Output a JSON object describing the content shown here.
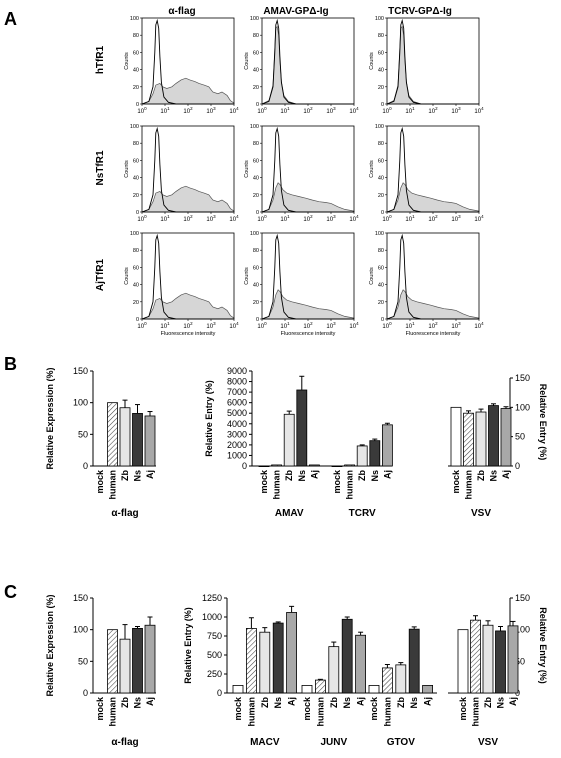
{
  "panels": {
    "a": {
      "letter": "A",
      "columns": [
        "α-flag",
        "AMAV-GPΔ-Ig",
        "TCRV-GPΔ-Ig"
      ],
      "rows": [
        "hTfR1",
        "NsTfR1",
        "AjTfR1"
      ],
      "ylabel": "Counts",
      "xlabel": "Fluorescence intensity",
      "yticks": [
        "0",
        "20",
        "40",
        "60",
        "80",
        "100"
      ],
      "xticks": [
        {
          "base": "10",
          "exp": "0"
        },
        {
          "base": "10",
          "exp": "1"
        },
        {
          "base": "10",
          "exp": "2"
        },
        {
          "base": "10",
          "exp": "3"
        },
        {
          "base": "10",
          "exp": "4"
        }
      ]
    },
    "b": {
      "letter": "B"
    },
    "c": {
      "letter": "C"
    }
  },
  "chart_data": [
    {
      "id": "A-histograms",
      "type": "area",
      "title": "",
      "xscale": "log",
      "xlim": [
        1,
        10000
      ],
      "ylim": [
        0,
        100
      ],
      "xlabel": "Fluorescence intensity",
      "ylabel": "Counts",
      "columns": [
        "α-flag",
        "AMAV-GPΔ-Ig",
        "TCRV-GPΔ-Ig"
      ],
      "rows": [
        "hTfR1",
        "NsTfR1",
        "AjTfR1"
      ],
      "series_note_open": "control (unfilled outline)",
      "curves": {
        "control": [
          [
            1,
            0
          ],
          [
            2,
            3
          ],
          [
            3,
            20
          ],
          [
            3.6,
            60
          ],
          [
            4,
            92
          ],
          [
            4.6,
            97
          ],
          [
            5.3,
            88
          ],
          [
            6,
            55
          ],
          [
            7,
            25
          ],
          [
            9,
            8
          ],
          [
            14,
            2
          ],
          [
            30,
            0
          ],
          [
            10000,
            0
          ]
        ],
        "flag": [
          [
            1,
            0
          ],
          [
            2,
            3
          ],
          [
            3,
            12
          ],
          [
            4,
            22
          ],
          [
            6,
            24
          ],
          [
            8,
            20
          ],
          [
            12,
            18
          ],
          [
            20,
            20
          ],
          [
            30,
            24
          ],
          [
            50,
            28
          ],
          [
            80,
            30
          ],
          [
            120,
            28
          ],
          [
            200,
            26
          ],
          [
            300,
            24
          ],
          [
            500,
            22
          ],
          [
            800,
            20
          ],
          [
            1200,
            14
          ],
          [
            2000,
            12
          ],
          [
            3000,
            14
          ],
          [
            5000,
            10
          ],
          [
            7000,
            4
          ],
          [
            10000,
            1
          ]
        ],
        "binding_h": [
          [
            1,
            0
          ],
          [
            2,
            4
          ],
          [
            3,
            22
          ],
          [
            3.6,
            65
          ],
          [
            4,
            88
          ],
          [
            4.6,
            90
          ],
          [
            5.3,
            80
          ],
          [
            6,
            50
          ],
          [
            7,
            26
          ],
          [
            9,
            10
          ],
          [
            14,
            3
          ],
          [
            30,
            0
          ],
          [
            10000,
            0
          ]
        ],
        "binding_tail": [
          [
            1,
            0
          ],
          [
            2,
            3
          ],
          [
            3,
            14
          ],
          [
            4,
            28
          ],
          [
            5,
            34
          ],
          [
            6,
            32
          ],
          [
            8,
            26
          ],
          [
            12,
            22
          ],
          [
            20,
            20
          ],
          [
            40,
            18
          ],
          [
            80,
            16
          ],
          [
            150,
            14
          ],
          [
            300,
            12
          ],
          [
            600,
            11
          ],
          [
            1000,
            10
          ],
          [
            2000,
            6
          ],
          [
            4000,
            3
          ],
          [
            10000,
            1
          ]
        ]
      },
      "panel_curves": [
        [
          "flag",
          "binding_h",
          "binding_h"
        ],
        [
          "flag",
          "binding_tail",
          "binding_tail"
        ],
        [
          "flag",
          "binding_tail",
          "binding_tail"
        ]
      ]
    },
    {
      "id": "B-expression",
      "type": "bar",
      "ylabel": "Relative Expression (%)",
      "ylim": [
        0,
        150
      ],
      "yticks": [
        0,
        50,
        100,
        150
      ],
      "groups": [
        {
          "label": "α-flag",
          "categories": [
            "mock",
            "human",
            "Zb",
            "Ns",
            "Aj"
          ]
        }
      ],
      "values": [
        null,
        100,
        92,
        83,
        79
      ],
      "errors": [
        0,
        0,
        12,
        14,
        7
      ]
    },
    {
      "id": "B-entry",
      "type": "bar",
      "ylabel": "Relative Entry (%)",
      "ylim": [
        0,
        9000
      ],
      "yticks": [
        0,
        1000,
        2000,
        3000,
        4000,
        5000,
        6000,
        7000,
        8000,
        9000
      ],
      "groups": [
        {
          "label": "AMAV",
          "categories": [
            "mock",
            "human",
            "Zb",
            "Ns",
            "Aj"
          ]
        },
        {
          "label": "TCRV",
          "categories": [
            "mock",
            "human",
            "Zb",
            "Ns",
            "Aj"
          ]
        }
      ],
      "values": [
        [
          0,
          100,
          4900,
          7200,
          100
        ],
        [
          0,
          100,
          1900,
          2400,
          3900
        ]
      ],
      "errors": [
        [
          0,
          0,
          300,
          1300,
          0
        ],
        [
          0,
          0,
          100,
          150,
          150
        ]
      ]
    },
    {
      "id": "B-vsv",
      "type": "bar",
      "ylabel": "Relative Entry (%)",
      "ylim": [
        0,
        150
      ],
      "yticks": [
        0,
        50,
        100,
        150
      ],
      "groups": [
        {
          "label": "VSV",
          "categories": [
            "mock",
            "human",
            "Zb",
            "Ns",
            "Aj"
          ]
        }
      ],
      "values": [
        100,
        90,
        92,
        103,
        98
      ],
      "errors": [
        0,
        4,
        5,
        3,
        3
      ]
    },
    {
      "id": "C-expression",
      "type": "bar",
      "ylabel": "Relative Expression (%)",
      "ylim": [
        0,
        150
      ],
      "yticks": [
        0,
        50,
        100,
        150
      ],
      "groups": [
        {
          "label": "α-flag",
          "categories": [
            "mock",
            "human",
            "Zb",
            "Ns",
            "Aj"
          ]
        }
      ],
      "values": [
        null,
        100,
        85,
        102,
        107
      ],
      "errors": [
        0,
        0,
        23,
        3,
        13
      ]
    },
    {
      "id": "C-entry",
      "type": "bar",
      "ylabel": "Relative Entry (%)",
      "ylim": [
        0,
        1250
      ],
      "yticks": [
        0,
        250,
        500,
        750,
        1000,
        1250
      ],
      "groups": [
        {
          "label": "MACV",
          "categories": [
            "mock",
            "human",
            "Zb",
            "Ns",
            "Aj"
          ]
        },
        {
          "label": "JUNV",
          "categories": [
            "mock",
            "human",
            "Zb",
            "Ns",
            "Aj"
          ]
        },
        {
          "label": "GTOV",
          "categories": [
            "mock",
            "human",
            "Zb",
            "Ns",
            "Aj"
          ]
        }
      ],
      "values": [
        [
          100,
          850,
          800,
          920,
          1060
        ],
        [
          100,
          170,
          610,
          970,
          760
        ],
        [
          100,
          330,
          370,
          840,
          100
        ]
      ],
      "errors": [
        [
          0,
          140,
          60,
          15,
          80
        ],
        [
          0,
          10,
          60,
          30,
          40
        ],
        [
          0,
          45,
          30,
          30,
          0
        ]
      ]
    },
    {
      "id": "C-vsv",
      "type": "bar",
      "ylabel": "Relative Entry (%)",
      "ylim": [
        0,
        150
      ],
      "yticks": [
        0,
        50,
        100,
        150
      ],
      "groups": [
        {
          "label": "VSV",
          "categories": [
            "mock",
            "human",
            "Zb",
            "Ns",
            "Aj"
          ]
        }
      ],
      "values": [
        100,
        115,
        107,
        98,
        106
      ],
      "errors": [
        0,
        7,
        7,
        7,
        7
      ]
    }
  ],
  "styles": {
    "fills": [
      "#ffffff",
      "hatch",
      "#e6e6e6",
      "#3a3a3a",
      "#a8a8a8"
    ],
    "histogram_fill": "#d6d6d6",
    "ink": "#000000"
  }
}
